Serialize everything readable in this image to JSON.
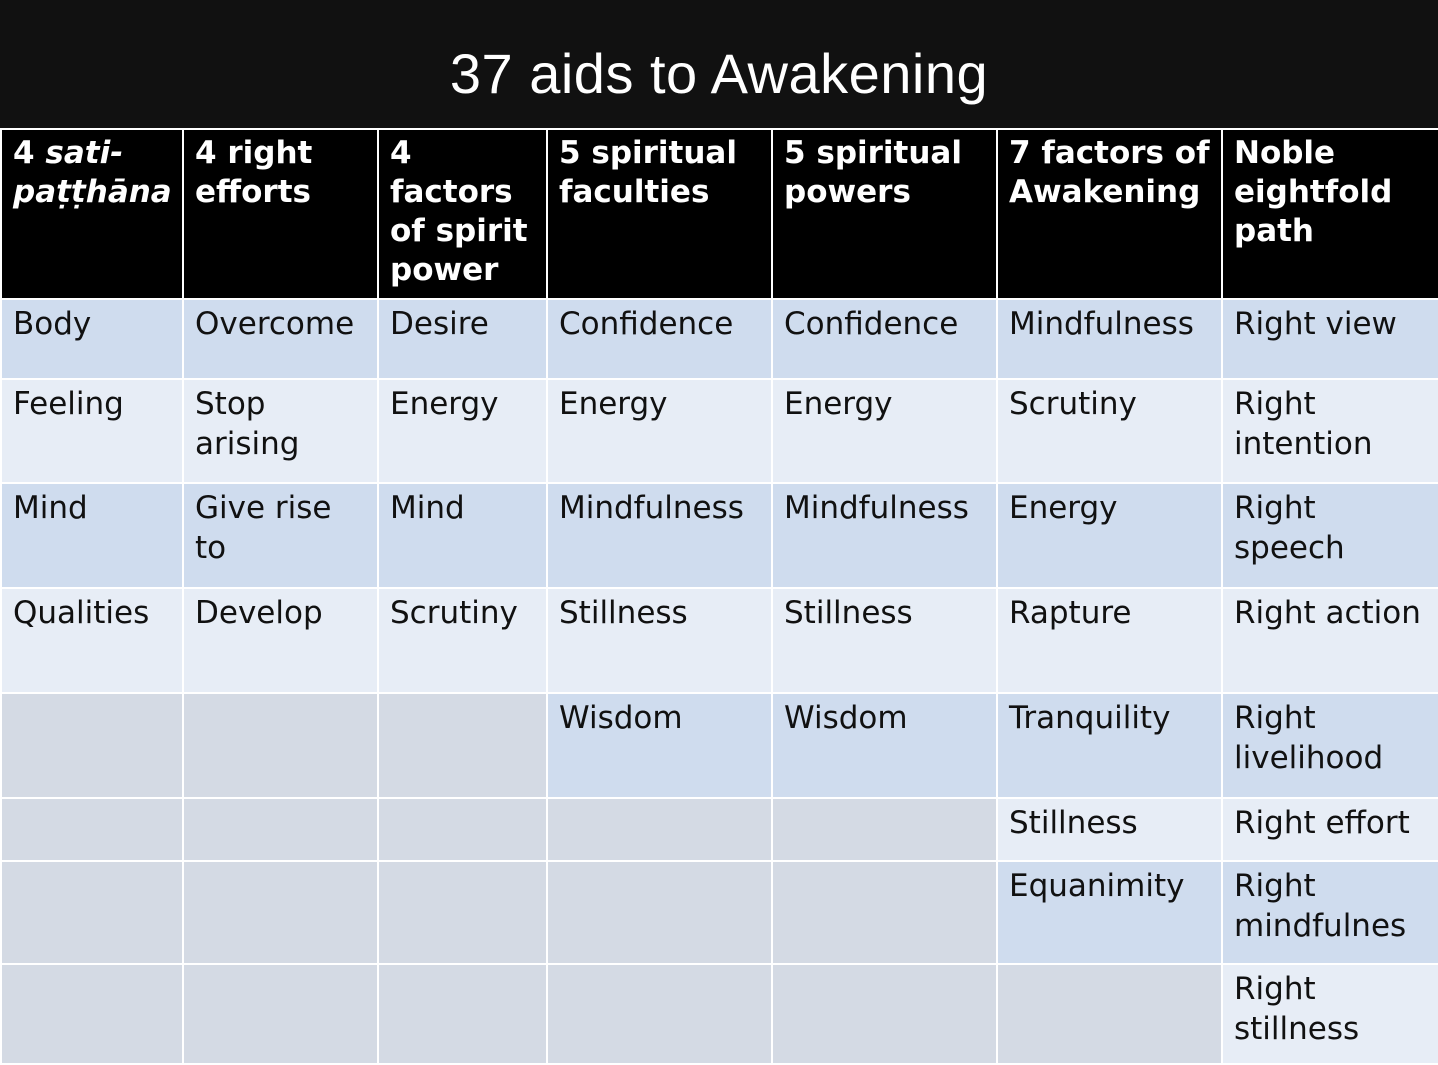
{
  "title": "37 aids to Awakening",
  "headers": [
    {
      "pre": "4 ",
      "italic": "sati-paṭṭhāna"
    },
    {
      "pre": "4 right efforts",
      "italic": ""
    },
    {
      "pre": "4 factors of spirit power",
      "italic": ""
    },
    {
      "pre": "5 spiritual faculties",
      "italic": ""
    },
    {
      "pre": "5 spiritual powers",
      "italic": ""
    },
    {
      "pre": "7 factors of Awakening",
      "italic": ""
    },
    {
      "pre": "Noble eightfold path",
      "italic": ""
    }
  ],
  "rows": [
    [
      "Body",
      "Overcome",
      "Desire",
      "Confidence",
      "Confidence",
      "Mindfulness",
      "Right view"
    ],
    [
      "Feeling",
      "Stop arising",
      "Energy",
      "Energy",
      "Energy",
      "Scrutiny",
      "Right intention"
    ],
    [
      "Mind",
      "Give rise to",
      "Mind",
      "Mindfulness",
      "Mindfulness",
      "Energy",
      "Right speech"
    ],
    [
      "Qualities",
      "Develop",
      "Scrutiny",
      "Stillness",
      "Stillness",
      "Rapture",
      "Right action"
    ],
    [
      "",
      "",
      "",
      "Wisdom",
      "Wisdom",
      "Tranquility",
      "Right livelihood"
    ],
    [
      "",
      "",
      "",
      "",
      "",
      "Stillness",
      "Right effort"
    ],
    [
      "",
      "",
      "",
      "",
      "",
      "Equanimity",
      "Right mindfulnes"
    ],
    [
      "",
      "",
      "",
      "",
      "",
      "",
      "Right stillness"
    ]
  ],
  "colors": {
    "highlight": "#e0141a",
    "header_bg": "#000000",
    "row_odd": "#cfdcee",
    "row_even": "#e7edf6"
  }
}
